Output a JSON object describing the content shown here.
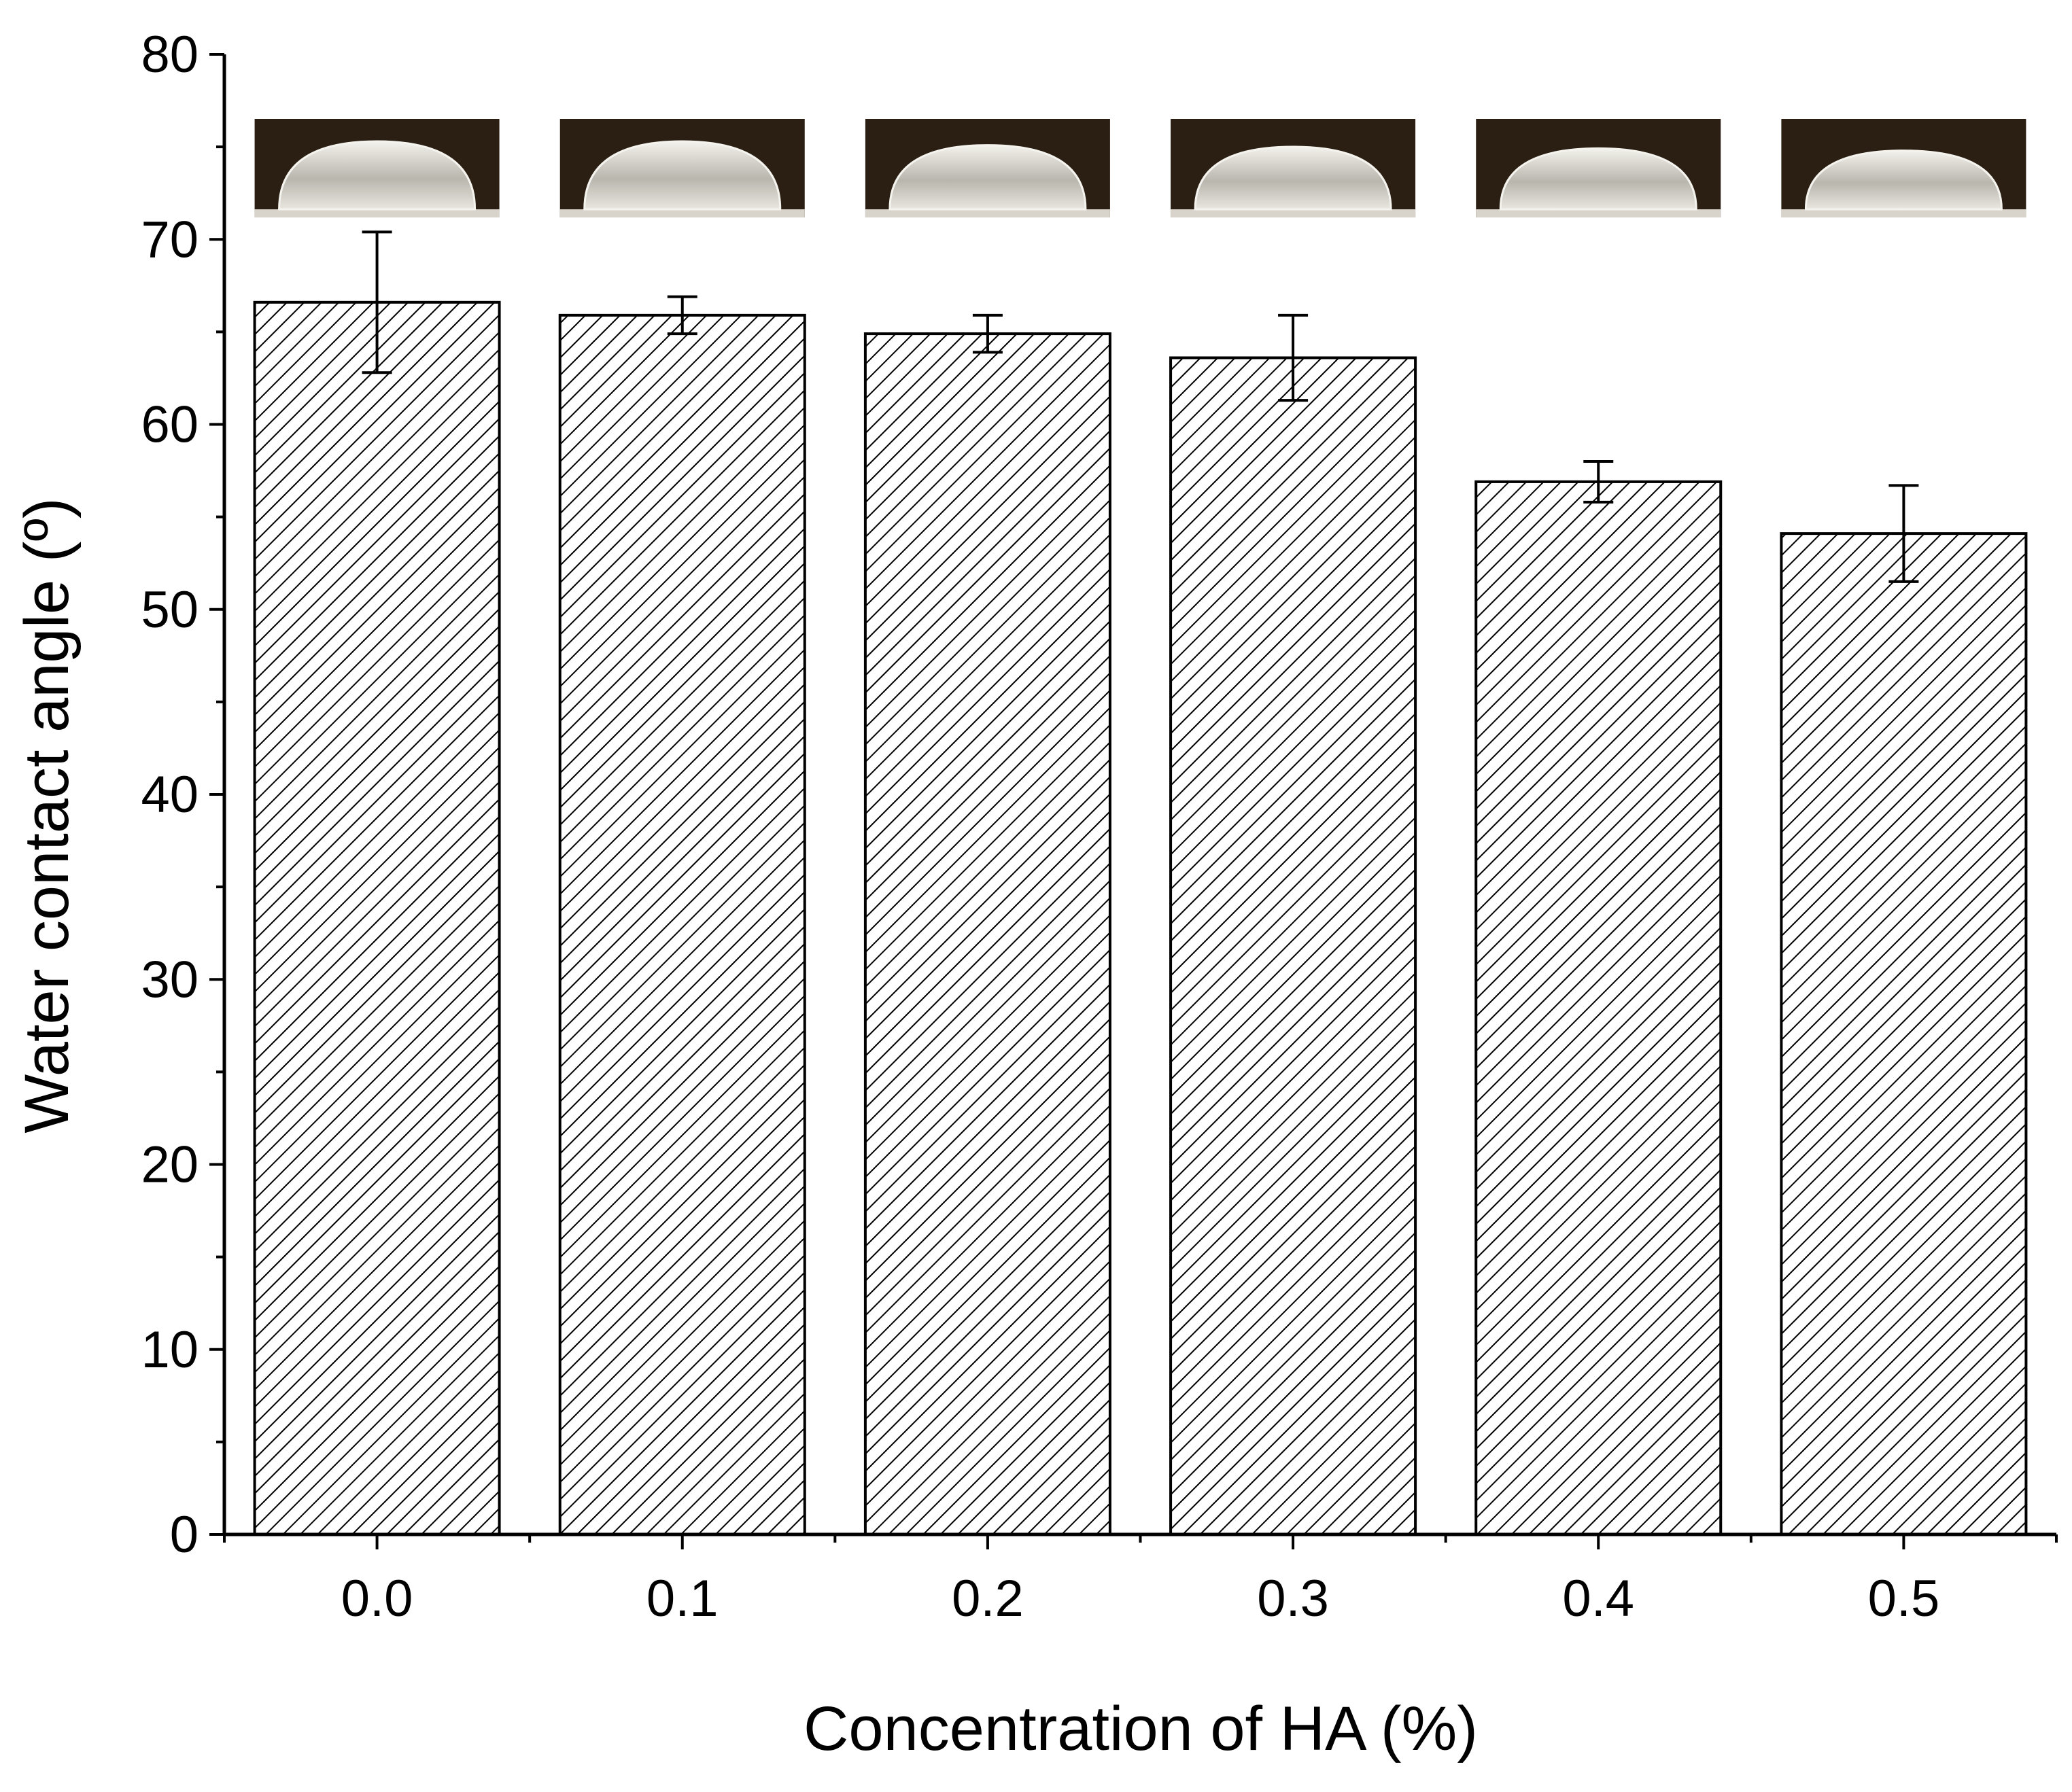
{
  "chart_data": {
    "type": "bar",
    "xlabel": "Concentration of HA (%)",
    "ylabel": "Water contact angle (º)",
    "ylim": [
      0,
      80
    ],
    "yticks": [
      "0",
      "10",
      "20",
      "30",
      "40",
      "50",
      "60",
      "70",
      "80"
    ],
    "categories": [
      "0.0",
      "0.1",
      "0.2",
      "0.3",
      "0.4",
      "0.5"
    ],
    "values": [
      66.6,
      65.9,
      64.9,
      63.6,
      56.9,
      54.1
    ],
    "error": [
      3.8,
      1.0,
      1.0,
      2.3,
      1.1,
      2.6
    ],
    "bar_fill": "hatched",
    "colors": {
      "bar_stroke": "#000000",
      "hatch": "#000000",
      "droplet_bg": "#2a1f12",
      "droplet": "#e8e4dc"
    },
    "inset_images": [
      "droplet-0.0",
      "droplet-0.1",
      "droplet-0.2",
      "droplet-0.3",
      "droplet-0.4",
      "droplet-0.5"
    ]
  }
}
